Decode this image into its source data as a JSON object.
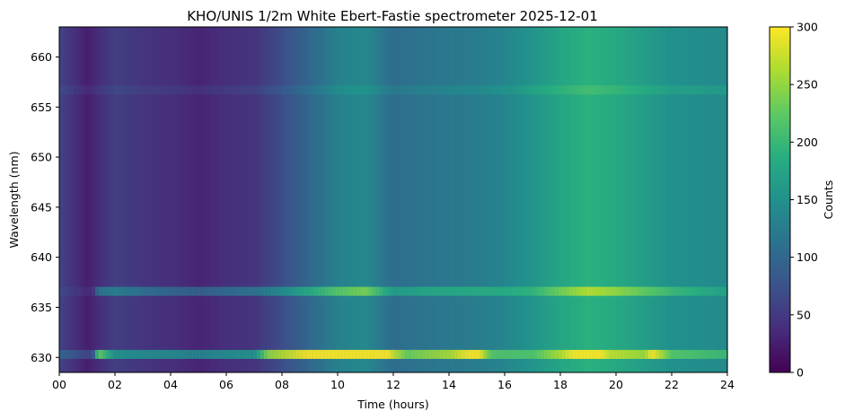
{
  "chart_data": {
    "type": "heatmap",
    "title": "KHO/UNIS 1/2m White Ebert-Fastie spectrometer 2025-12-01",
    "xlabel": "Time (hours)",
    "ylabel": "Wavelength (nm)",
    "xlim": [
      0,
      24
    ],
    "ylim": [
      628.5,
      663
    ],
    "x_ticks": [
      0,
      2,
      4,
      6,
      8,
      10,
      12,
      14,
      16,
      18,
      20,
      22,
      24
    ],
    "x_tick_labels": [
      "00",
      "02",
      "04",
      "06",
      "08",
      "10",
      "12",
      "14",
      "16",
      "18",
      "20",
      "22",
      "24"
    ],
    "y_ticks": [
      630,
      635,
      640,
      645,
      650,
      655,
      660
    ],
    "y_tick_labels": [
      "630",
      "635",
      "640",
      "645",
      "650",
      "655",
      "660"
    ],
    "colormap": "viridis",
    "colorbar": {
      "label": "Counts",
      "range": [
        0,
        300
      ],
      "ticks": [
        0,
        50,
        100,
        150,
        200,
        250,
        300
      ],
      "tick_labels": [
        "0",
        "50",
        "100",
        "150",
        "200",
        "250",
        "300"
      ]
    },
    "background_counts_by_hour": [
      {
        "x": 0,
        "y": 60
      },
      {
        "x": 1,
        "y": 25
      },
      {
        "x": 2,
        "y": 55
      },
      {
        "x": 3,
        "y": 45
      },
      {
        "x": 4,
        "y": 40
      },
      {
        "x": 5,
        "y": 30
      },
      {
        "x": 6,
        "y": 40
      },
      {
        "x": 7,
        "y": 45
      },
      {
        "x": 8,
        "y": 70
      },
      {
        "x": 9,
        "y": 100
      },
      {
        "x": 10,
        "y": 130
      },
      {
        "x": 11,
        "y": 140
      },
      {
        "x": 12,
        "y": 105
      },
      {
        "x": 13,
        "y": 115
      },
      {
        "x": 14,
        "y": 120
      },
      {
        "x": 15,
        "y": 125
      },
      {
        "x": 16,
        "y": 135
      },
      {
        "x": 17,
        "y": 155
      },
      {
        "x": 18,
        "y": 175
      },
      {
        "x": 19,
        "y": 190
      },
      {
        "x": 20,
        "y": 180
      },
      {
        "x": 21,
        "y": 165
      },
      {
        "x": 22,
        "y": 150
      },
      {
        "x": 23,
        "y": 145
      },
      {
        "x": 24,
        "y": 140
      }
    ],
    "emission_lines": [
      {
        "wavelength": 630.3,
        "extra_counts_by_hour": [
          {
            "x": 0,
            "y": 40
          },
          {
            "x": 1.2,
            "y": 40
          },
          {
            "x": 1.4,
            "y": 200
          },
          {
            "x": 2,
            "y": 100
          },
          {
            "x": 7,
            "y": 110
          },
          {
            "x": 7.5,
            "y": 190
          },
          {
            "x": 10,
            "y": 210
          },
          {
            "x": 11.8,
            "y": 190
          },
          {
            "x": 12.5,
            "y": 120
          },
          {
            "x": 14,
            "y": 140
          },
          {
            "x": 15,
            "y": 190
          },
          {
            "x": 15.5,
            "y": 90
          },
          {
            "x": 17,
            "y": 60
          },
          {
            "x": 18,
            "y": 90
          },
          {
            "x": 19,
            "y": 150
          },
          {
            "x": 19.8,
            "y": 90
          },
          {
            "x": 21,
            "y": 90
          },
          {
            "x": 21.3,
            "y": 140
          },
          {
            "x": 22,
            "y": 70
          },
          {
            "x": 24,
            "y": 60
          }
        ]
      },
      {
        "wavelength": 636.6,
        "extra_counts_by_hour": [
          {
            "x": 0,
            "y": 10
          },
          {
            "x": 1.2,
            "y": 10
          },
          {
            "x": 1.4,
            "y": 80
          },
          {
            "x": 4,
            "y": 60
          },
          {
            "x": 7,
            "y": 70
          },
          {
            "x": 10,
            "y": 90
          },
          {
            "x": 11,
            "y": 100
          },
          {
            "x": 12,
            "y": 60
          },
          {
            "x": 15,
            "y": 60
          },
          {
            "x": 17,
            "y": 40
          },
          {
            "x": 19,
            "y": 80
          },
          {
            "x": 21.3,
            "y": 60
          },
          {
            "x": 24,
            "y": 30
          }
        ]
      },
      {
        "wavelength": 656.7,
        "extra_counts_by_hour": [
          {
            "x": 0,
            "y": 10
          },
          {
            "x": 24,
            "y": 20
          }
        ]
      }
    ]
  }
}
